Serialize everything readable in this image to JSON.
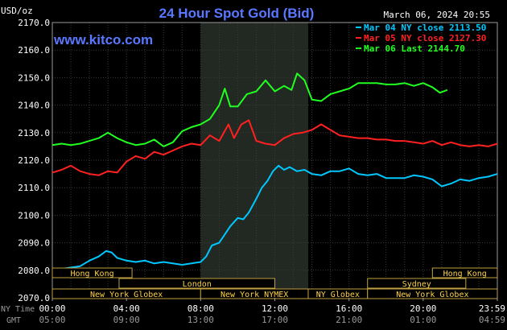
{
  "title": "24 Hour Spot Gold (Bid)",
  "currency_label": "USD/oz",
  "timestamp": "March 06, 2024 20:55",
  "website": "www.kitco.com",
  "legend": [
    {
      "label": "Mar 04 NY close 2113.50",
      "color": "#00c8ff"
    },
    {
      "label": "Mar 05 NY close 2127.30",
      "color": "#ff2020"
    },
    {
      "label": "Mar 06 Last 2144.70",
      "color": "#20ff20"
    }
  ],
  "sessions_row1": [
    {
      "label": "Hong Kong",
      "start": 0,
      "end": 4.3
    },
    {
      "label": "Hong Kong",
      "start": 20.5,
      "end": 24
    }
  ],
  "sessions_row2": [
    {
      "label": "London",
      "start": 3.6,
      "end": 12.0
    },
    {
      "label": "Sydney",
      "start": 17.0,
      "end": 22.3
    }
  ],
  "sessions_row3": [
    {
      "label": "New York Globex",
      "start": 0,
      "end": 8.0
    },
    {
      "label": "New York NYMEX",
      "start": 8.0,
      "end": 13.8
    },
    {
      "label": "NY Globex",
      "start": 13.8,
      "end": 17.0
    },
    {
      "label": "New York Globex",
      "start": 17.0,
      "end": 24
    }
  ],
  "time_row_labels": {
    "ny": "NY Time",
    "gmt": "GMT"
  },
  "chart_data": {
    "type": "line",
    "title": "24 Hour Spot Gold (Bid)",
    "ylabel": "USD/oz",
    "ylim": [
      2070,
      2170
    ],
    "yticks": [
      "2070.0",
      "2080.0",
      "2090.0",
      "2100.0",
      "2110.0",
      "2120.0",
      "2130.0",
      "2140.0",
      "2150.0",
      "2160.0",
      "2170.0"
    ],
    "xlim": [
      0,
      24
    ],
    "x_ticks_ny": [
      "00:00",
      "04:00",
      "08:00",
      "12:00",
      "16:00",
      "20:00",
      "23:59"
    ],
    "x_ticks_gmt": [
      "05:00",
      "09:00",
      "13:00",
      "17:00",
      "21:00",
      "01:00",
      "04:59"
    ],
    "x_tick_hours": [
      0,
      4,
      8,
      12,
      16,
      20,
      24
    ],
    "shaded_region_hours": [
      8.0,
      13.8
    ],
    "grid": true,
    "series": [
      {
        "name": "Mar 04 NY close 2113.50",
        "color": "#00c8ff",
        "x": [
          0,
          0.5,
          1,
          1.5,
          2,
          2.5,
          2.9,
          3.2,
          3.5,
          4,
          4.5,
          5,
          5.5,
          6,
          6.5,
          7,
          7.5,
          8,
          8.3,
          8.6,
          9,
          9.3,
          9.6,
          10,
          10.3,
          10.6,
          11,
          11.3,
          11.6,
          11.9,
          12.2,
          12.5,
          12.8,
          13.2,
          13.6,
          14,
          14.5,
          15,
          15.5,
          16,
          16.5,
          17,
          17.5,
          18,
          18.5,
          19,
          19.5,
          20,
          20.5,
          21,
          21.5,
          22,
          22.5,
          23,
          23.5,
          24
        ],
        "y": [
          2080.2,
          2080.5,
          2081.0,
          2081.5,
          2083.5,
          2085.0,
          2087.0,
          2086.5,
          2084.5,
          2083.5,
          2083.0,
          2083.5,
          2082.5,
          2083.0,
          2082.5,
          2082.0,
          2082.5,
          2083.0,
          2085.0,
          2089.0,
          2090.0,
          2093.0,
          2096.0,
          2099.0,
          2098.5,
          2101.0,
          2106.0,
          2110.0,
          2112.5,
          2116.0,
          2118.0,
          2116.5,
          2117.5,
          2116.0,
          2116.5,
          2115.0,
          2114.5,
          2116.0,
          2116.0,
          2117.0,
          2115.0,
          2114.5,
          2115.0,
          2113.5,
          2113.5,
          2113.5,
          2114.5,
          2114.0,
          2113.0,
          2110.5,
          2111.5,
          2113.0,
          2112.5,
          2113.5,
          2114.0,
          2115.0
        ]
      },
      {
        "name": "Mar 05 NY close 2127.30",
        "color": "#ff2020",
        "x": [
          0,
          0.5,
          1,
          1.5,
          2,
          2.5,
          3,
          3.5,
          4,
          4.5,
          5,
          5.5,
          6,
          6.5,
          7,
          7.5,
          8,
          8.5,
          9,
          9.5,
          9.8,
          10.2,
          10.6,
          11,
          11.5,
          12,
          12.5,
          13,
          13.5,
          14,
          14.5,
          15,
          15.5,
          16,
          16.5,
          17,
          17.5,
          18,
          18.5,
          19,
          19.5,
          20,
          20.5,
          21,
          21.5,
          22,
          22.5,
          23,
          23.5,
          24
        ],
        "y": [
          2115.5,
          2116.5,
          2118.0,
          2116.0,
          2115.0,
          2114.5,
          2116.0,
          2115.5,
          2119.5,
          2121.5,
          2120.5,
          2123.0,
          2122.0,
          2123.5,
          2125.0,
          2126.0,
          2125.5,
          2129.0,
          2127.0,
          2133.0,
          2128.0,
          2133.0,
          2134.5,
          2127.0,
          2126.0,
          2125.5,
          2128.0,
          2129.5,
          2130.0,
          2131.0,
          2133.0,
          2131.0,
          2129.0,
          2128.5,
          2128.0,
          2128.0,
          2127.5,
          2127.5,
          2127.0,
          2127.0,
          2126.5,
          2126.0,
          2127.0,
          2125.5,
          2126.5,
          2125.5,
          2125.0,
          2125.5,
          2125.0,
          2126.0
        ]
      },
      {
        "name": "Mar 06 Last 2144.70",
        "color": "#20ff20",
        "x": [
          0,
          0.5,
          1,
          1.5,
          2,
          2.5,
          3,
          3.5,
          4,
          4.5,
          5,
          5.5,
          6,
          6.5,
          7,
          7.5,
          8,
          8.5,
          9,
          9.3,
          9.6,
          10,
          10.5,
          11,
          11.5,
          12,
          12.5,
          12.9,
          13.2,
          13.6,
          14,
          14.5,
          15,
          15.5,
          16,
          16.5,
          17,
          17.5,
          18,
          18.5,
          19,
          19.5,
          20,
          20.5,
          20.9,
          21.3
        ],
        "y": [
          2125.5,
          2126.0,
          2125.5,
          2126.0,
          2127.0,
          2128.0,
          2130.0,
          2128.0,
          2126.5,
          2125.5,
          2126.0,
          2127.5,
          2125.0,
          2126.5,
          2130.5,
          2132.0,
          2133.0,
          2135.0,
          2140.0,
          2146.0,
          2139.5,
          2139.5,
          2144.0,
          2145.0,
          2149.0,
          2145.0,
          2147.0,
          2145.5,
          2151.5,
          2149.0,
          2142.0,
          2141.5,
          2144.0,
          2145.0,
          2146.0,
          2148.0,
          2148.0,
          2148.0,
          2147.5,
          2147.5,
          2148.0,
          2147.0,
          2148.0,
          2146.5,
          2144.5,
          2145.5
        ]
      }
    ]
  }
}
